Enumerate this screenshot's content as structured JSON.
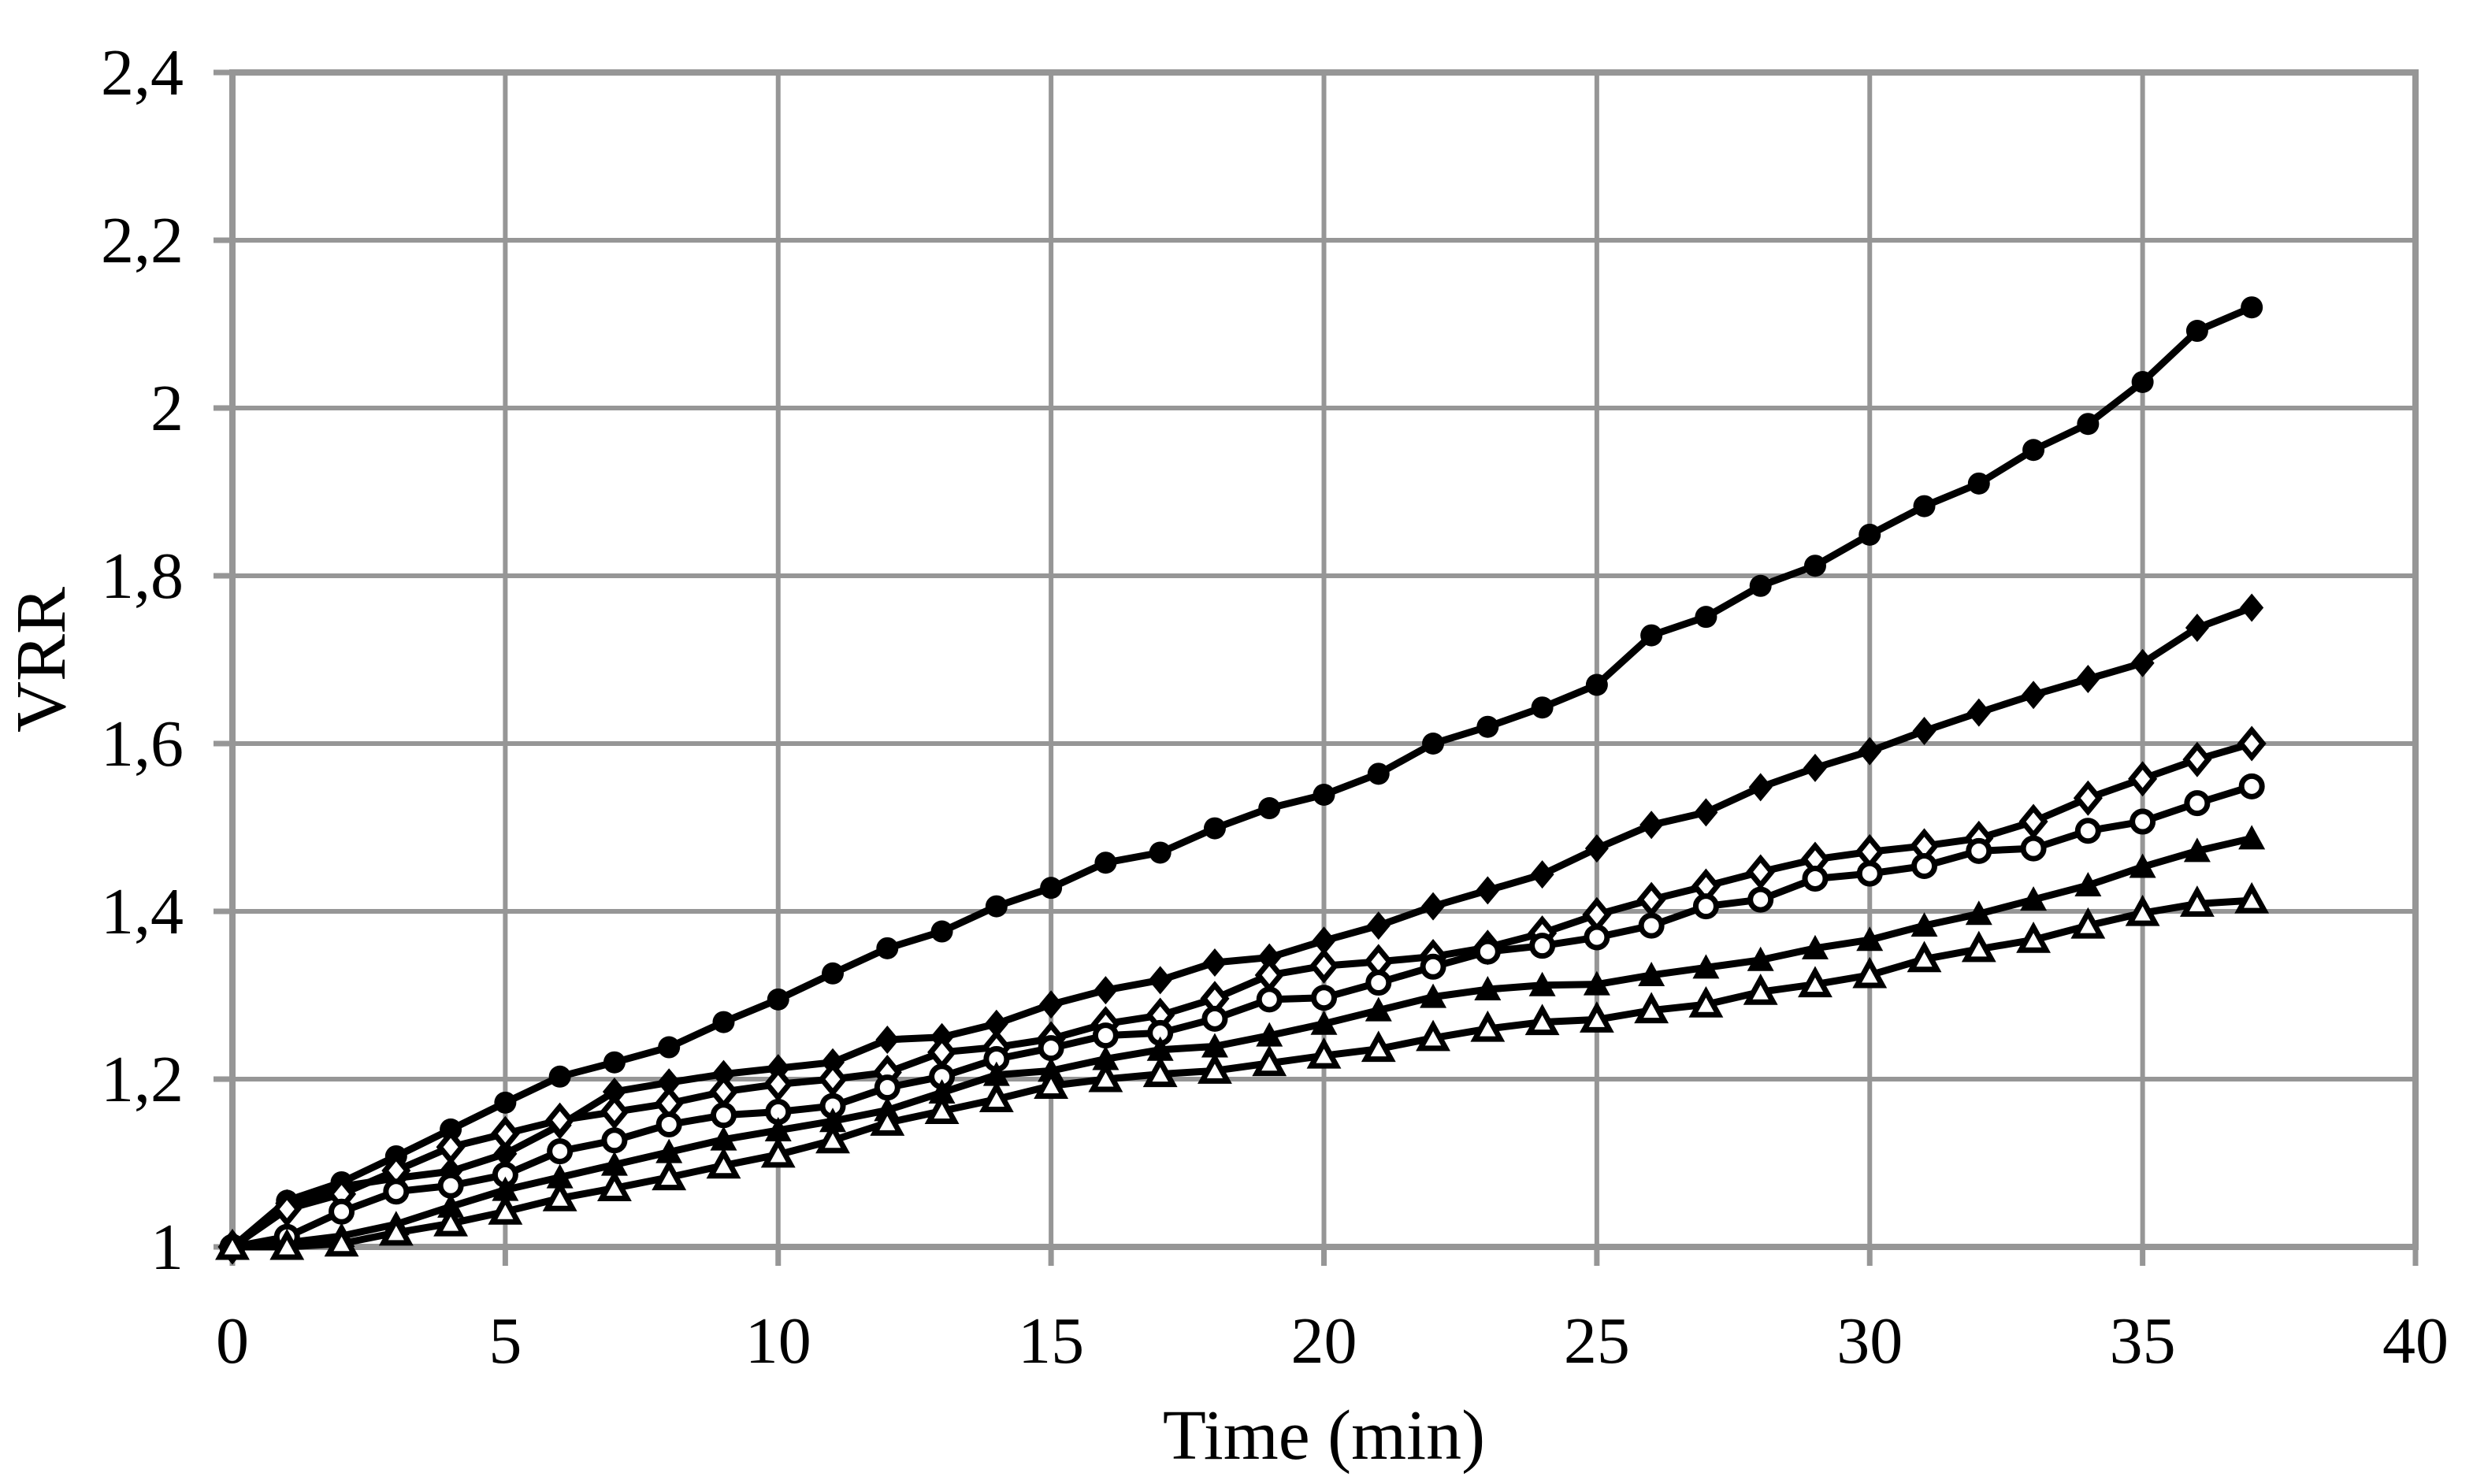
{
  "page": {
    "background": "#ffffff"
  },
  "chart_data": {
    "type": "line",
    "title": "",
    "xlabel": "Time (min)",
    "ylabel": "VRR",
    "xlim": [
      0,
      40
    ],
    "ylim": [
      1,
      2.4
    ],
    "grid": true,
    "legend_position": "none",
    "decimal_separator": ",",
    "x_ticks": [
      {
        "value": 0,
        "label": "0"
      },
      {
        "value": 5,
        "label": "5"
      },
      {
        "value": 10,
        "label": "10"
      },
      {
        "value": 15,
        "label": "15"
      },
      {
        "value": 20,
        "label": "20"
      },
      {
        "value": 25,
        "label": "25"
      },
      {
        "value": 30,
        "label": "30"
      },
      {
        "value": 35,
        "label": "35"
      },
      {
        "value": 40,
        "label": "40"
      }
    ],
    "y_ticks": [
      {
        "value": 1.0,
        "label": "1"
      },
      {
        "value": 1.2,
        "label": "1,2"
      },
      {
        "value": 1.4,
        "label": "1,4"
      },
      {
        "value": 1.6,
        "label": "1,6"
      },
      {
        "value": 1.8,
        "label": "1,8"
      },
      {
        "value": 2.0,
        "label": "2"
      },
      {
        "value": 2.2,
        "label": "2,2"
      },
      {
        "value": 2.4,
        "label": "2,4"
      }
    ],
    "x": [
      0,
      1,
      2,
      3,
      4,
      5,
      6,
      7,
      8,
      9,
      10,
      11,
      12,
      13,
      14,
      15,
      16,
      17,
      18,
      19,
      20,
      21,
      22,
      23,
      24,
      25,
      26,
      27,
      28,
      29,
      30,
      31,
      32,
      33,
      34,
      35,
      36,
      37
    ],
    "series": [
      {
        "name": "filled-circle-series",
        "marker": "filled-circle",
        "color": "#000000",
        "values": [
          1.0,
          1.055,
          1.077,
          1.108,
          1.14,
          1.172,
          1.203,
          1.22,
          1.238,
          1.268,
          1.295,
          1.326,
          1.356,
          1.376,
          1.406,
          1.428,
          1.458,
          1.47,
          1.499,
          1.523,
          1.539,
          1.564,
          1.6,
          1.62,
          1.643,
          1.67,
          1.729,
          1.751,
          1.788,
          1.812,
          1.849,
          1.883,
          1.91,
          1.95,
          1.981,
          2.031,
          2.092,
          2.12
        ]
      },
      {
        "name": "filled-diamond-series",
        "marker": "filled-diamond",
        "color": "#000000",
        "values": [
          1.0,
          1.052,
          1.072,
          1.082,
          1.09,
          1.111,
          1.145,
          1.185,
          1.196,
          1.206,
          1.213,
          1.22,
          1.247,
          1.25,
          1.266,
          1.289,
          1.306,
          1.318,
          1.339,
          1.345,
          1.365,
          1.383,
          1.406,
          1.425,
          1.444,
          1.475,
          1.503,
          1.518,
          1.548,
          1.571,
          1.591,
          1.615,
          1.637,
          1.658,
          1.677,
          1.696,
          1.738,
          1.762
        ]
      },
      {
        "name": "open-diamond-series",
        "marker": "open-diamond",
        "color": "#000000",
        "values": [
          1.0,
          1.045,
          1.063,
          1.091,
          1.119,
          1.135,
          1.151,
          1.161,
          1.171,
          1.185,
          1.194,
          1.2,
          1.208,
          1.232,
          1.238,
          1.248,
          1.266,
          1.276,
          1.296,
          1.324,
          1.335,
          1.34,
          1.346,
          1.357,
          1.374,
          1.396,
          1.414,
          1.43,
          1.447,
          1.462,
          1.471,
          1.478,
          1.487,
          1.507,
          1.535,
          1.558,
          1.581,
          1.6
        ]
      },
      {
        "name": "open-circle-series",
        "marker": "open-circle",
        "color": "#000000",
        "values": [
          1.0,
          1.012,
          1.042,
          1.066,
          1.073,
          1.086,
          1.114,
          1.127,
          1.146,
          1.157,
          1.161,
          1.168,
          1.19,
          1.203,
          1.224,
          1.237,
          1.252,
          1.255,
          1.272,
          1.295,
          1.297,
          1.315,
          1.334,
          1.352,
          1.359,
          1.369,
          1.383,
          1.406,
          1.414,
          1.439,
          1.445,
          1.454,
          1.472,
          1.475,
          1.496,
          1.507,
          1.529,
          1.549
        ]
      },
      {
        "name": "filled-triangle-series",
        "marker": "filled-triangle",
        "color": "#000000",
        "values": [
          1.0,
          1.005,
          1.013,
          1.027,
          1.048,
          1.068,
          1.083,
          1.098,
          1.113,
          1.128,
          1.139,
          1.15,
          1.163,
          1.184,
          1.205,
          1.21,
          1.224,
          1.235,
          1.239,
          1.252,
          1.266,
          1.282,
          1.298,
          1.307,
          1.312,
          1.313,
          1.324,
          1.333,
          1.342,
          1.356,
          1.366,
          1.383,
          1.397,
          1.414,
          1.431,
          1.453,
          1.472,
          1.487
        ]
      },
      {
        "name": "open-triangle-series",
        "marker": "open-triangle",
        "color": "#000000",
        "values": [
          1.0,
          1.0,
          1.004,
          1.017,
          1.028,
          1.042,
          1.058,
          1.07,
          1.083,
          1.097,
          1.11,
          1.127,
          1.148,
          1.162,
          1.176,
          1.192,
          1.2,
          1.206,
          1.21,
          1.219,
          1.228,
          1.236,
          1.249,
          1.26,
          1.268,
          1.271,
          1.282,
          1.289,
          1.304,
          1.313,
          1.324,
          1.343,
          1.355,
          1.366,
          1.383,
          1.398,
          1.409,
          1.413
        ]
      }
    ],
    "colors": {
      "line": "#000000",
      "grid": "#969696",
      "text": "#000000",
      "background": "#ffffff"
    }
  }
}
